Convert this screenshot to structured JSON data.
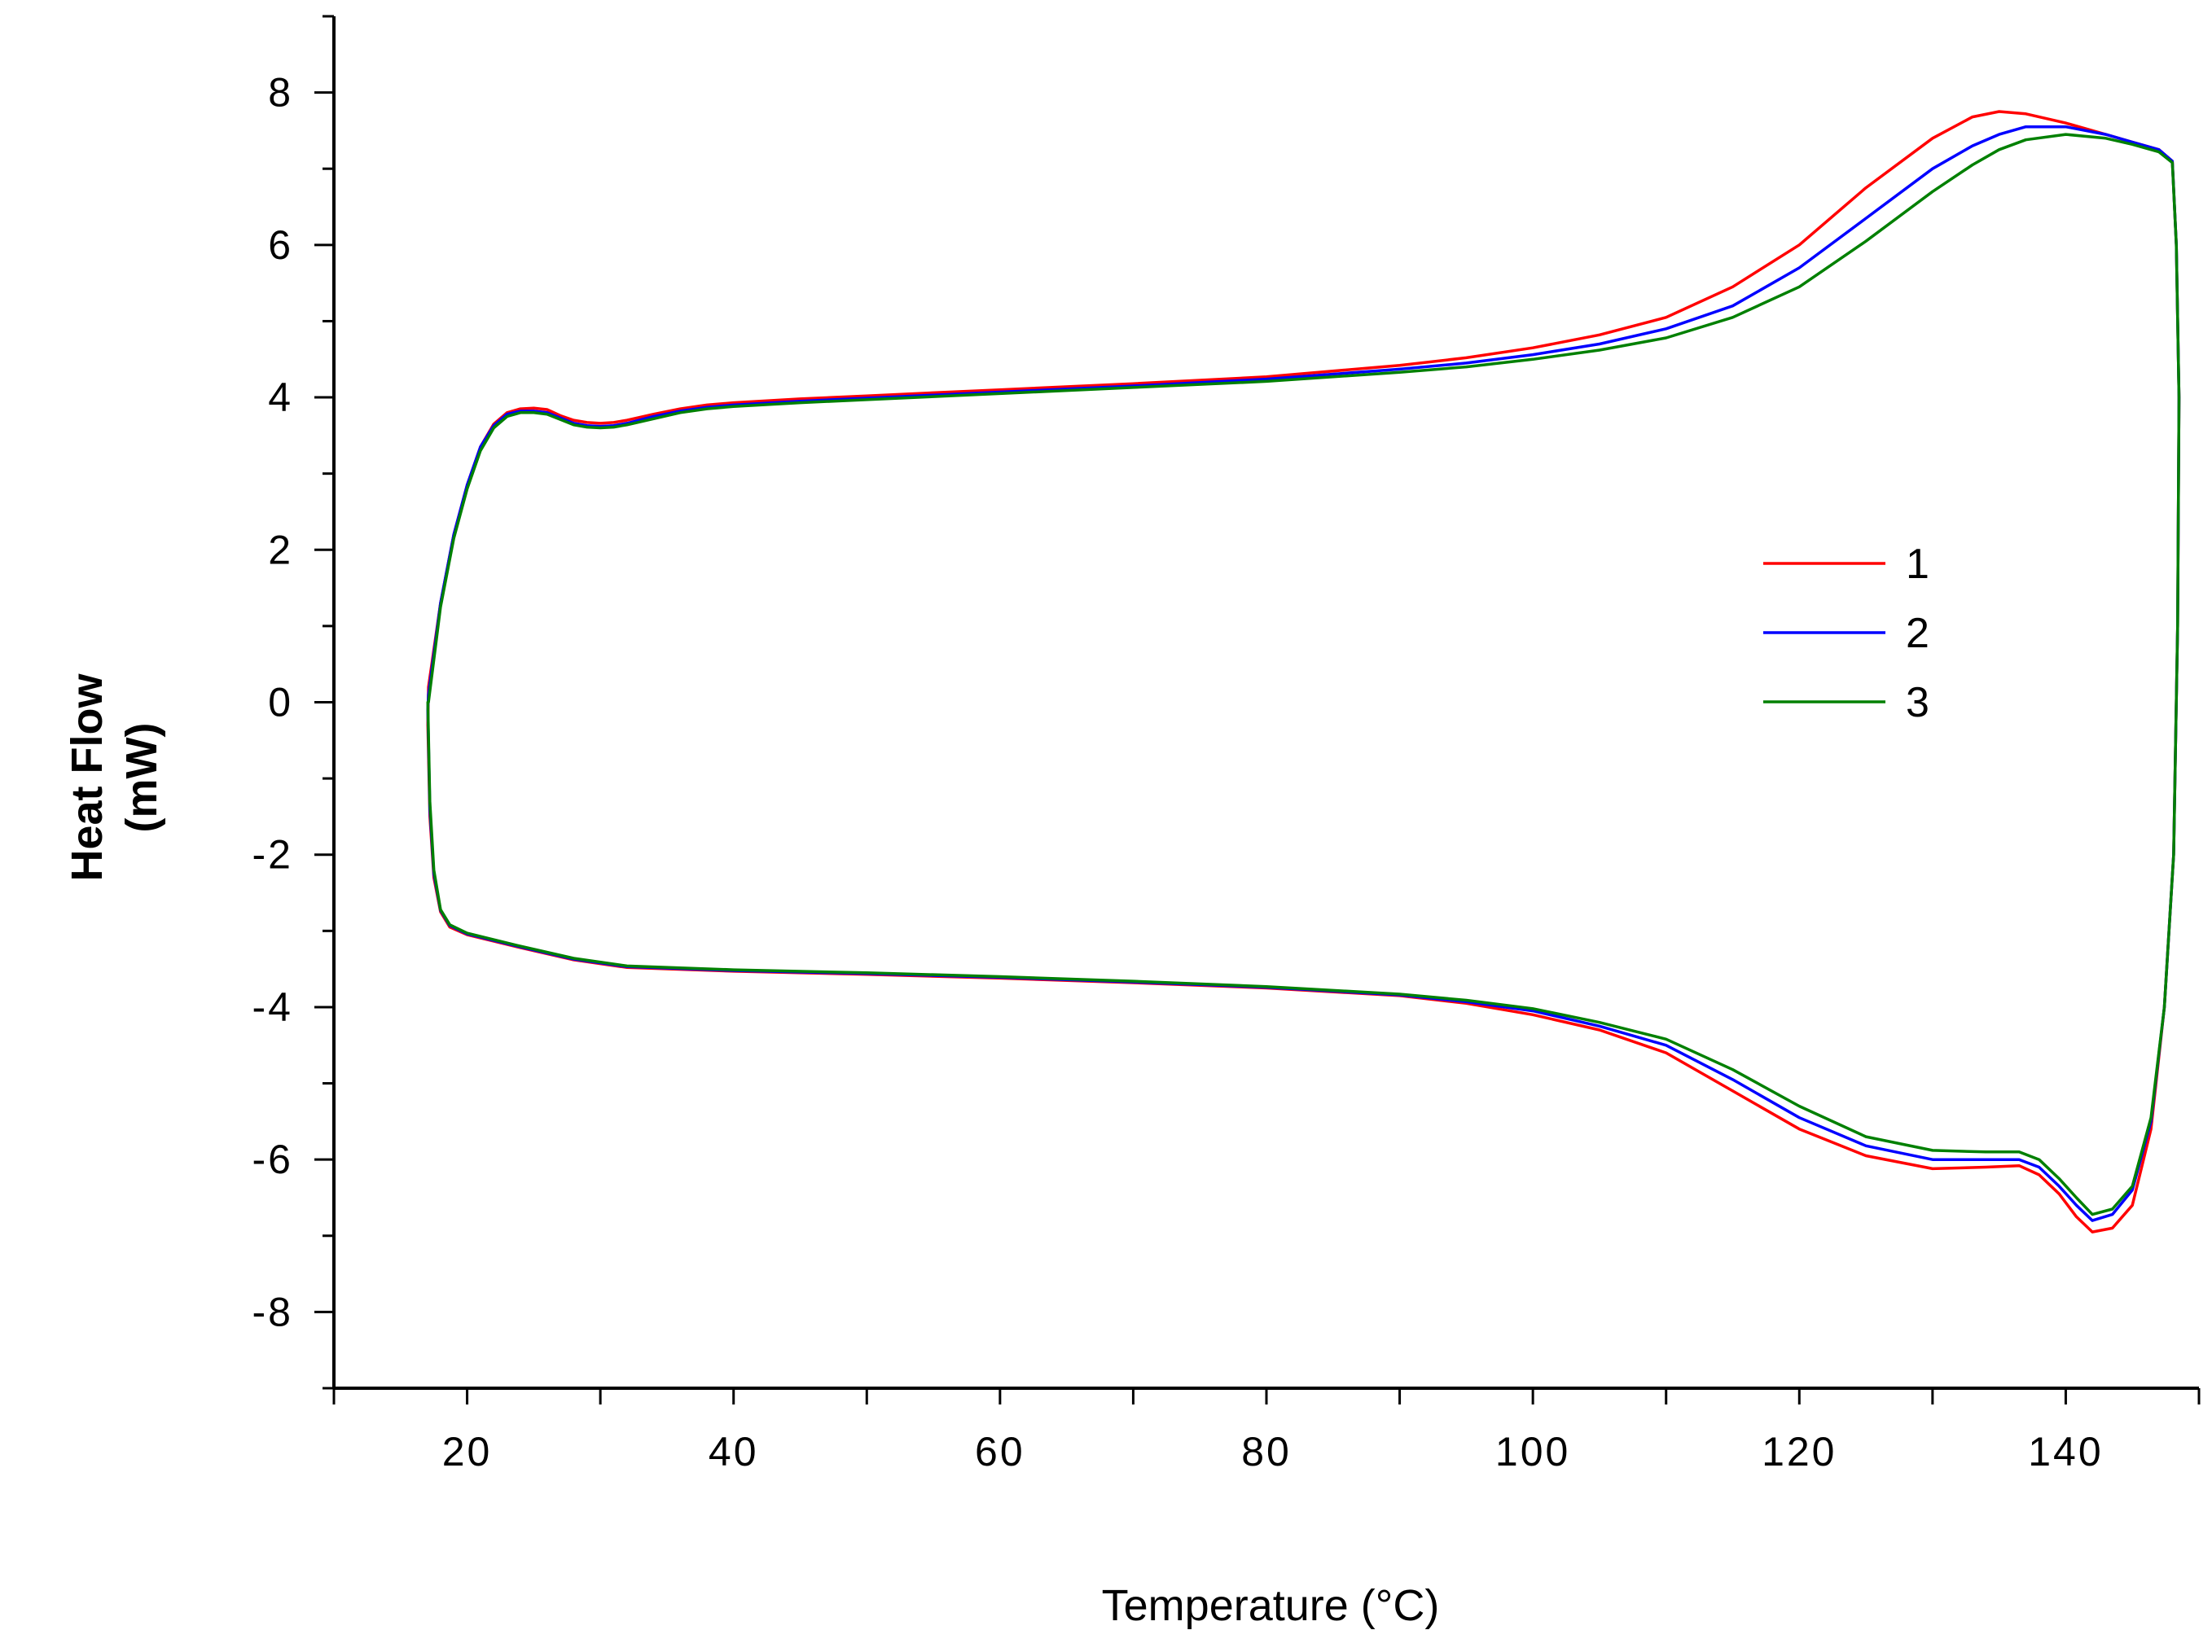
{
  "chart_data": {
    "type": "line",
    "title": "",
    "xlabel": "Temperature (°C)",
    "ylabel_line1": "Heat Flow",
    "ylabel_line2": "(mW)",
    "xlim": [
      10,
      150
    ],
    "ylim": [
      -9,
      9
    ],
    "x_ticks": [
      20,
      40,
      60,
      80,
      100,
      120,
      140
    ],
    "y_ticks": [
      -8,
      -6,
      -4,
      -2,
      0,
      2,
      4,
      6,
      8
    ],
    "grid": false,
    "legend_position": "center-right",
    "series": [
      {
        "name": "1",
        "color": "#ff0000",
        "heating": [
          [
            17.1,
            0.2
          ],
          [
            18,
            1.3
          ],
          [
            19,
            2.2
          ],
          [
            20,
            2.85
          ],
          [
            21,
            3.35
          ],
          [
            22,
            3.65
          ],
          [
            23,
            3.8
          ],
          [
            24,
            3.85
          ],
          [
            25,
            3.86
          ],
          [
            26,
            3.84
          ],
          [
            27,
            3.76
          ],
          [
            28,
            3.7
          ],
          [
            29,
            3.67
          ],
          [
            30,
            3.66
          ],
          [
            31,
            3.67
          ],
          [
            32,
            3.7
          ],
          [
            34,
            3.78
          ],
          [
            36,
            3.85
          ],
          [
            38,
            3.9
          ],
          [
            40,
            3.93
          ],
          [
            45,
            3.98
          ],
          [
            50,
            4.02
          ],
          [
            55,
            4.06
          ],
          [
            60,
            4.1
          ],
          [
            70,
            4.18
          ],
          [
            80,
            4.27
          ],
          [
            90,
            4.42
          ],
          [
            95,
            4.52
          ],
          [
            100,
            4.65
          ],
          [
            105,
            4.82
          ],
          [
            110,
            5.05
          ],
          [
            115,
            5.45
          ],
          [
            120,
            6.0
          ],
          [
            125,
            6.75
          ],
          [
            130,
            7.4
          ],
          [
            133,
            7.68
          ],
          [
            135,
            7.75
          ],
          [
            137,
            7.72
          ],
          [
            140,
            7.6
          ],
          [
            143,
            7.45
          ],
          [
            145,
            7.35
          ],
          [
            147,
            7.25
          ],
          [
            148,
            7.1
          ],
          [
            148.3,
            6.0
          ],
          [
            148.5,
            4.0
          ],
          [
            148.4,
            1.0
          ],
          [
            148.1,
            -2.0
          ],
          [
            147.4,
            -4.0
          ],
          [
            146.4,
            -5.6
          ],
          [
            145.0,
            -6.6
          ],
          [
            143.5,
            -6.9
          ],
          [
            142.0,
            -6.95
          ],
          [
            140.8,
            -6.75
          ],
          [
            139.5,
            -6.45
          ],
          [
            138.0,
            -6.2
          ],
          [
            136.5,
            -6.08
          ],
          [
            134,
            -6.1
          ],
          [
            130,
            -6.12
          ],
          [
            125,
            -5.95
          ],
          [
            120,
            -5.6
          ],
          [
            115,
            -5.1
          ],
          [
            110,
            -4.6
          ],
          [
            105,
            -4.3
          ],
          [
            100,
            -4.1
          ],
          [
            95,
            -3.95
          ],
          [
            90,
            -3.85
          ],
          [
            80,
            -3.75
          ],
          [
            70,
            -3.68
          ],
          [
            60,
            -3.62
          ],
          [
            50,
            -3.57
          ],
          [
            40,
            -3.53
          ],
          [
            32,
            -3.48
          ],
          [
            28,
            -3.38
          ],
          [
            24,
            -3.22
          ],
          [
            20,
            -3.05
          ],
          [
            18.7,
            -2.95
          ],
          [
            18,
            -2.75
          ],
          [
            17.5,
            -2.3
          ],
          [
            17.2,
            -1.5
          ],
          [
            17.05,
            -0.3
          ]
        ]
      },
      {
        "name": "2",
        "color": "#0000ff",
        "heating": [
          [
            17.1,
            0.1
          ],
          [
            18,
            1.3
          ],
          [
            19,
            2.2
          ],
          [
            20,
            2.85
          ],
          [
            21,
            3.35
          ],
          [
            22,
            3.63
          ],
          [
            23,
            3.78
          ],
          [
            24,
            3.82
          ],
          [
            25,
            3.82
          ],
          [
            26,
            3.8
          ],
          [
            27,
            3.73
          ],
          [
            28,
            3.66
          ],
          [
            29,
            3.63
          ],
          [
            30,
            3.62
          ],
          [
            31,
            3.63
          ],
          [
            32,
            3.66
          ],
          [
            34,
            3.75
          ],
          [
            36,
            3.82
          ],
          [
            38,
            3.87
          ],
          [
            40,
            3.9
          ],
          [
            45,
            3.95
          ],
          [
            50,
            3.99
          ],
          [
            55,
            4.03
          ],
          [
            60,
            4.07
          ],
          [
            70,
            4.15
          ],
          [
            80,
            4.24
          ],
          [
            90,
            4.37
          ],
          [
            95,
            4.45
          ],
          [
            100,
            4.56
          ],
          [
            105,
            4.7
          ],
          [
            110,
            4.9
          ],
          [
            115,
            5.2
          ],
          [
            120,
            5.7
          ],
          [
            125,
            6.35
          ],
          [
            130,
            7.0
          ],
          [
            133,
            7.3
          ],
          [
            135,
            7.45
          ],
          [
            137,
            7.55
          ],
          [
            140,
            7.55
          ],
          [
            143,
            7.45
          ],
          [
            145,
            7.35
          ],
          [
            147,
            7.25
          ],
          [
            148,
            7.1
          ],
          [
            148.3,
            6.0
          ],
          [
            148.5,
            4.0
          ],
          [
            148.4,
            1.0
          ],
          [
            148.1,
            -2.0
          ],
          [
            147.4,
            -4.0
          ],
          [
            146.4,
            -5.5
          ],
          [
            145.0,
            -6.4
          ],
          [
            143.5,
            -6.72
          ],
          [
            142.0,
            -6.8
          ],
          [
            140.8,
            -6.6
          ],
          [
            139.5,
            -6.35
          ],
          [
            138.0,
            -6.1
          ],
          [
            136.5,
            -6.0
          ],
          [
            134,
            -6.0
          ],
          [
            130,
            -6.0
          ],
          [
            125,
            -5.82
          ],
          [
            120,
            -5.45
          ],
          [
            115,
            -4.95
          ],
          [
            110,
            -4.5
          ],
          [
            105,
            -4.25
          ],
          [
            100,
            -4.05
          ],
          [
            95,
            -3.93
          ],
          [
            90,
            -3.84
          ],
          [
            80,
            -3.74
          ],
          [
            70,
            -3.67
          ],
          [
            60,
            -3.61
          ],
          [
            50,
            -3.56
          ],
          [
            40,
            -3.52
          ],
          [
            32,
            -3.47
          ],
          [
            28,
            -3.37
          ],
          [
            24,
            -3.21
          ],
          [
            20,
            -3.04
          ],
          [
            18.7,
            -2.93
          ],
          [
            18,
            -2.73
          ],
          [
            17.5,
            -2.25
          ],
          [
            17.2,
            -1.4
          ],
          [
            17.05,
            -0.1
          ]
        ]
      },
      {
        "name": "3",
        "color": "#008000",
        "heating": [
          [
            17.1,
            0.0
          ],
          [
            18,
            1.25
          ],
          [
            19,
            2.15
          ],
          [
            20,
            2.8
          ],
          [
            21,
            3.3
          ],
          [
            22,
            3.6
          ],
          [
            23,
            3.75
          ],
          [
            24,
            3.8
          ],
          [
            25,
            3.8
          ],
          [
            26,
            3.78
          ],
          [
            27,
            3.71
          ],
          [
            28,
            3.64
          ],
          [
            29,
            3.61
          ],
          [
            30,
            3.6
          ],
          [
            31,
            3.61
          ],
          [
            32,
            3.64
          ],
          [
            34,
            3.72
          ],
          [
            36,
            3.8
          ],
          [
            38,
            3.85
          ],
          [
            40,
            3.88
          ],
          [
            45,
            3.93
          ],
          [
            50,
            3.97
          ],
          [
            55,
            4.01
          ],
          [
            60,
            4.05
          ],
          [
            70,
            4.13
          ],
          [
            80,
            4.21
          ],
          [
            90,
            4.33
          ],
          [
            95,
            4.4
          ],
          [
            100,
            4.5
          ],
          [
            105,
            4.62
          ],
          [
            110,
            4.78
          ],
          [
            115,
            5.05
          ],
          [
            120,
            5.45
          ],
          [
            125,
            6.05
          ],
          [
            130,
            6.7
          ],
          [
            133,
            7.05
          ],
          [
            135,
            7.25
          ],
          [
            137,
            7.38
          ],
          [
            140,
            7.45
          ],
          [
            143,
            7.4
          ],
          [
            145,
            7.32
          ],
          [
            147,
            7.22
          ],
          [
            148,
            7.08
          ],
          [
            148.3,
            6.0
          ],
          [
            148.5,
            4.0
          ],
          [
            148.4,
            1.0
          ],
          [
            148.1,
            -2.0
          ],
          [
            147.4,
            -4.0
          ],
          [
            146.4,
            -5.45
          ],
          [
            145.0,
            -6.35
          ],
          [
            143.5,
            -6.65
          ],
          [
            142.0,
            -6.72
          ],
          [
            140.8,
            -6.5
          ],
          [
            139.5,
            -6.25
          ],
          [
            138.0,
            -6.0
          ],
          [
            136.5,
            -5.9
          ],
          [
            134,
            -5.9
          ],
          [
            130,
            -5.88
          ],
          [
            125,
            -5.7
          ],
          [
            120,
            -5.3
          ],
          [
            115,
            -4.82
          ],
          [
            110,
            -4.42
          ],
          [
            105,
            -4.2
          ],
          [
            100,
            -4.02
          ],
          [
            95,
            -3.91
          ],
          [
            90,
            -3.83
          ],
          [
            80,
            -3.73
          ],
          [
            70,
            -3.66
          ],
          [
            60,
            -3.6
          ],
          [
            50,
            -3.55
          ],
          [
            40,
            -3.51
          ],
          [
            32,
            -3.46
          ],
          [
            28,
            -3.36
          ],
          [
            24,
            -3.2
          ],
          [
            20,
            -3.03
          ],
          [
            18.7,
            -2.92
          ],
          [
            18,
            -2.72
          ],
          [
            17.5,
            -2.2
          ],
          [
            17.2,
            -1.3
          ],
          [
            17.05,
            0.0
          ]
        ]
      }
    ]
  }
}
